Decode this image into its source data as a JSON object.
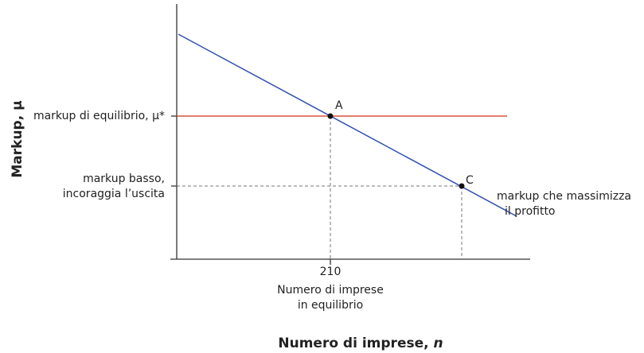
{
  "diagram": {
    "y_axis_title": "Markup, μ",
    "x_axis_title": {
      "text": "Numero di imprese, ",
      "variable": "n"
    },
    "equilibrium_markup_label": "markup di equilibrio, μ*",
    "low_markup_label": [
      "markup basso,",
      "incoraggia l’uscita"
    ],
    "profit_max_label": [
      "markup che massimizza",
      "il profitto"
    ],
    "x_tick_label": "210",
    "x_tick_caption": [
      "Numero di imprese",
      "in equilibrio"
    ],
    "points": {
      "a": "A",
      "c": "C"
    }
  }
}
